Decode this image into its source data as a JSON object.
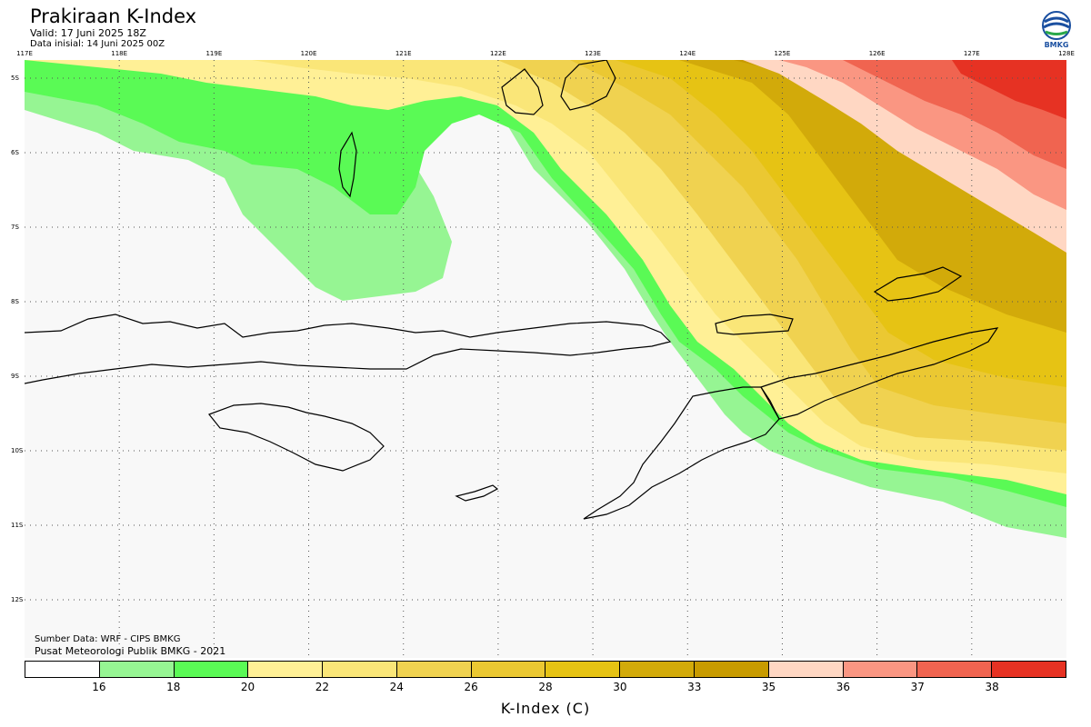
{
  "header": {
    "title": "Prakiraan K-Index",
    "valid": "Valid: 17 Juni 2025 18Z",
    "initial": "Data inisial: 14 Juni 2025 00Z",
    "logo_text": "BMKG"
  },
  "axes": {
    "lon_labels": [
      "117E",
      "118E",
      "119E",
      "120E",
      "121E",
      "122E",
      "123E",
      "124E",
      "125E",
      "126E",
      "127E",
      "128E"
    ],
    "lat_labels": [
      "5S",
      "6S",
      "7S",
      "8S",
      "9S",
      "10S",
      "11S",
      "12S"
    ]
  },
  "credits": {
    "source": "Sumber Data: WRF - CIPS BMKG",
    "center": "Pusat Meteorologi Publik BMKG - 2021"
  },
  "legend": {
    "title": "K-Index (C)",
    "ticks": [
      "16",
      "18",
      "20",
      "22",
      "24",
      "26",
      "28",
      "30",
      "33",
      "35",
      "36",
      "37",
      "38"
    ],
    "colors": [
      "#ffffff",
      "#96f593",
      "#5afa55",
      "#fff096",
      "#fae678",
      "#f0d250",
      "#ebc832",
      "#e6c314",
      "#d2aa0a",
      "#c89b00",
      "#ffd7c3",
      "#fa9682",
      "#f06450",
      "#e63223"
    ]
  },
  "map_colors": {
    "background": "#f8f8f8",
    "land_outline": "#000000"
  }
}
